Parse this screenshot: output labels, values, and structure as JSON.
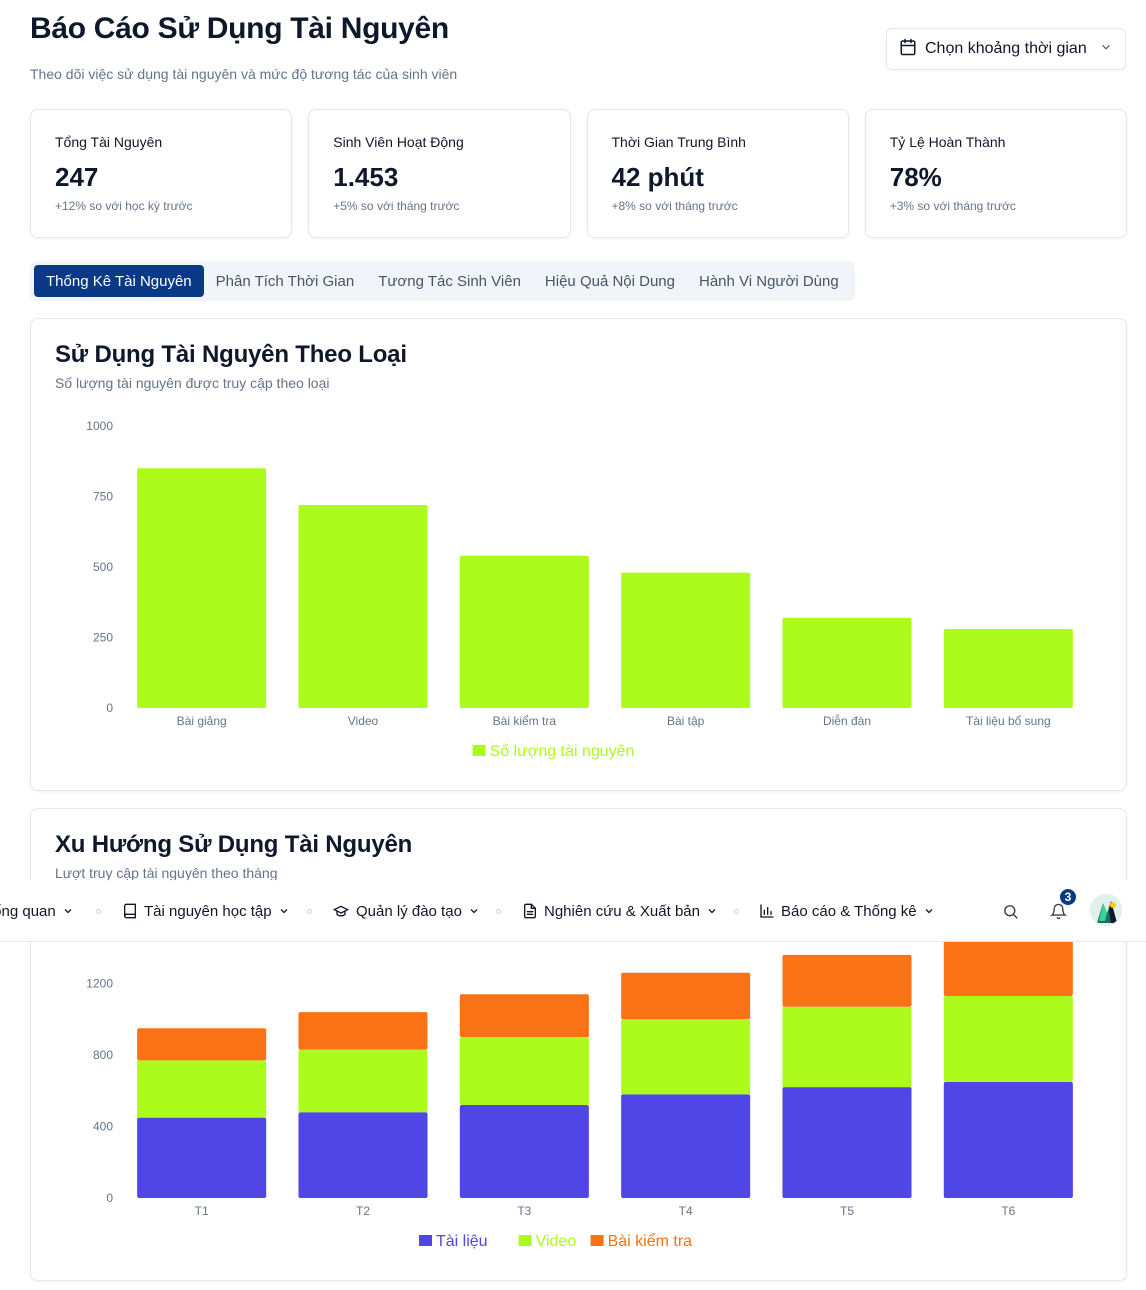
{
  "header": {
    "title": "Báo Cáo Sử Dụng Tài Nguyên",
    "subtitle": "Theo dõi việc sử dụng tài nguyên và mức độ tương tác của sinh viên",
    "date_picker_label": "Chọn khoảng thời gian"
  },
  "stats": [
    {
      "title": "Tổng Tài Nguyên",
      "value": "247",
      "sub": "+12% so với học kỳ trước"
    },
    {
      "title": "Sinh Viên Hoạt Động",
      "value": "1.453",
      "sub": "+5% so với tháng trước"
    },
    {
      "title": "Thời Gian Trung Bình",
      "value": "42 phút",
      "sub": "+8% so với tháng trước"
    },
    {
      "title": "Tỷ Lệ Hoàn Thành",
      "value": "78%",
      "sub": "+3% so với tháng trước"
    }
  ],
  "tabs": [
    {
      "label": "Thống Kê Tài Nguyên",
      "active": true
    },
    {
      "label": "Phân Tích Thời Gian",
      "active": false
    },
    {
      "label": "Tương Tác Sinh Viên",
      "active": false
    },
    {
      "label": "Hiệu Quả Nội Dung",
      "active": false
    },
    {
      "label": "Hành Vi Người Dùng",
      "active": false
    }
  ],
  "cards": {
    "usage_by_type": {
      "title": "Sử Dụng Tài Nguyên Theo Loại",
      "subtitle": "Số lượng tài nguyên được truy cập theo loại"
    },
    "usage_trend": {
      "title": "Xu Hướng Sử Dụng Tài Nguyên",
      "subtitle": "Lượt truy cập tài nguyên theo tháng"
    }
  },
  "colors": {
    "bar_green": "#adfa1d",
    "series_blue": "#4f46e5",
    "series_green": "#adfa1d",
    "series_orange": "#f97316",
    "primary": "#0a3a86"
  },
  "chart_data": [
    {
      "type": "bar",
      "title": "Sử Dụng Tài Nguyên Theo Loại",
      "categories": [
        "Bài giảng",
        "Video",
        "Bài kiểm tra",
        "Bài tập",
        "Diễn đàn",
        "Tài liệu bổ sung"
      ],
      "series": [
        {
          "name": "Số lượng tài nguyên",
          "values": [
            850,
            720,
            540,
            480,
            320,
            280
          ]
        }
      ],
      "yticks": [
        0,
        250,
        500,
        750,
        1000
      ],
      "ylim": [
        0,
        1000
      ],
      "legend": "bottom-center"
    },
    {
      "type": "bar",
      "stacked": true,
      "title": "Xu Hướng Sử Dụng Tài Nguyên",
      "categories": [
        "T1",
        "T2",
        "T3",
        "T4",
        "T5",
        "T6"
      ],
      "series": [
        {
          "name": "Tài liệu",
          "values": [
            450,
            480,
            520,
            580,
            620,
            650
          ]
        },
        {
          "name": "Video",
          "values": [
            320,
            350,
            380,
            420,
            450,
            480
          ]
        },
        {
          "name": "Bài kiểm tra",
          "values": [
            180,
            210,
            240,
            260,
            290,
            320
          ]
        }
      ],
      "yticks": [
        0,
        400,
        800,
        1200
      ],
      "ylim": [
        0,
        1600
      ],
      "legend": "bottom-center"
    }
  ],
  "navbar": {
    "items": [
      {
        "label": "Tổng quan",
        "icon": "chevron-down-icon"
      },
      {
        "label": "Tài nguyên học tập",
        "icon": "book-icon"
      },
      {
        "label": "Quản lý đào tạo",
        "icon": "graduation-cap-icon"
      },
      {
        "label": "Nghiên cứu & Xuất bản",
        "icon": "file-text-icon"
      },
      {
        "label": "Báo cáo & Thống kê",
        "icon": "bar-chart-icon"
      }
    ],
    "notification_count": "3"
  }
}
